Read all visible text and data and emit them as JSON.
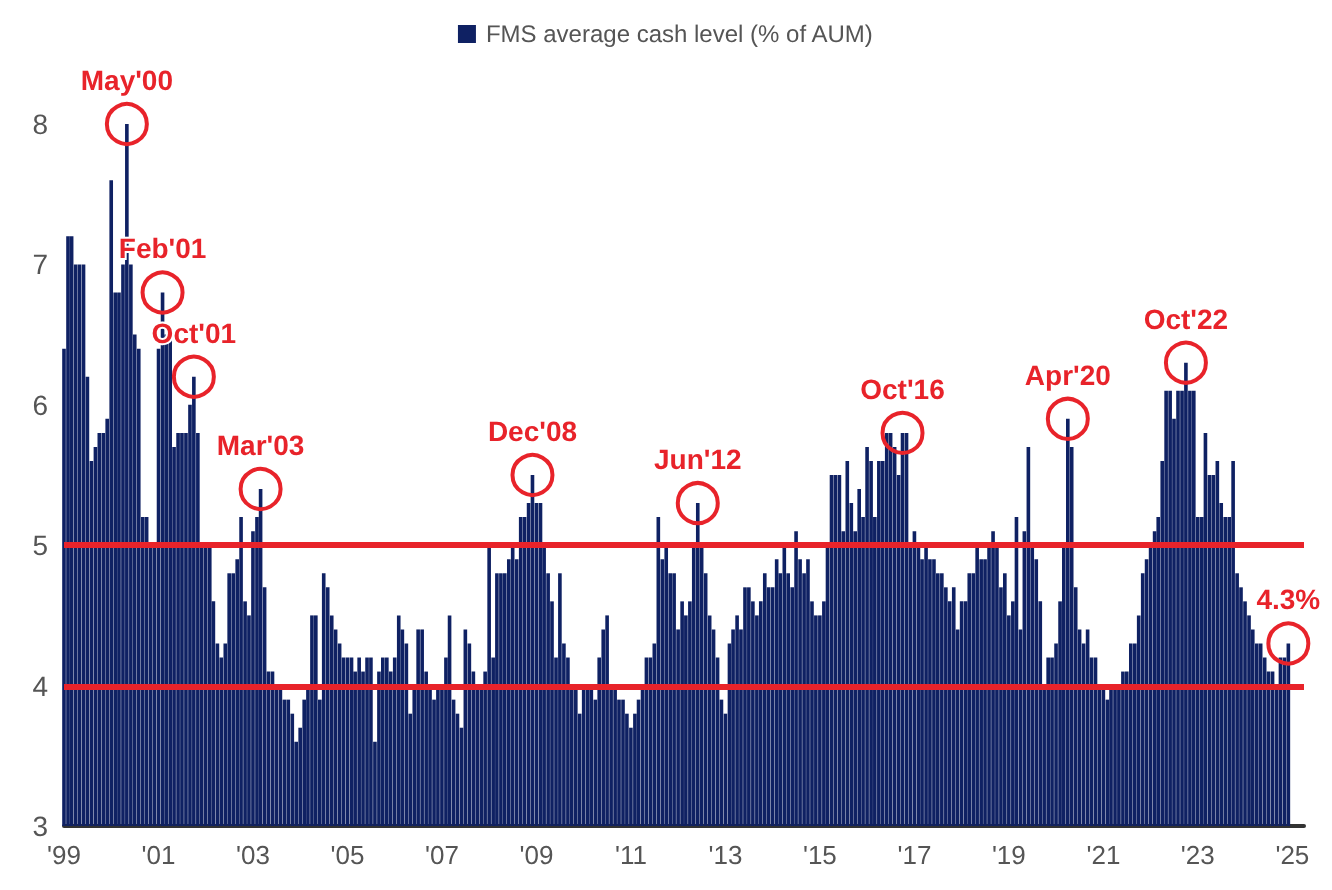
{
  "chart_data": {
    "type": "bar",
    "x": [
      "1999-01",
      "1999-02",
      "1999-03",
      "1999-04",
      "1999-05",
      "1999-06",
      "1999-07",
      "1999-08",
      "1999-09",
      "1999-10",
      "1999-11",
      "1999-12",
      "2000-01",
      "2000-02",
      "2000-03",
      "2000-04",
      "2000-05",
      "2000-06",
      "2000-07",
      "2000-08",
      "2000-09",
      "2000-10",
      "2000-11",
      "2000-12",
      "2001-01",
      "2001-02",
      "2001-03",
      "2001-04",
      "2001-05",
      "2001-06",
      "2001-07",
      "2001-08",
      "2001-09",
      "2001-10",
      "2001-11",
      "2001-12",
      "2002-01",
      "2002-02",
      "2002-03",
      "2002-04",
      "2002-05",
      "2002-06",
      "2002-07",
      "2002-08",
      "2002-09",
      "2002-10",
      "2002-11",
      "2002-12",
      "2003-01",
      "2003-02",
      "2003-03",
      "2003-04",
      "2003-05",
      "2003-06",
      "2003-07",
      "2003-08",
      "2003-09",
      "2003-10",
      "2003-11",
      "2003-12",
      "2004-01",
      "2004-02",
      "2004-03",
      "2004-04",
      "2004-05",
      "2004-06",
      "2004-07",
      "2004-08",
      "2004-09",
      "2004-10",
      "2004-11",
      "2004-12",
      "2005-01",
      "2005-02",
      "2005-03",
      "2005-04",
      "2005-05",
      "2005-06",
      "2005-07",
      "2005-08",
      "2005-09",
      "2005-10",
      "2005-11",
      "2005-12",
      "2006-01",
      "2006-02",
      "2006-03",
      "2006-04",
      "2006-05",
      "2006-06",
      "2006-07",
      "2006-08",
      "2006-09",
      "2006-10",
      "2006-11",
      "2006-12",
      "2007-01",
      "2007-02",
      "2007-03",
      "2007-04",
      "2007-05",
      "2007-06",
      "2007-07",
      "2007-08",
      "2007-09",
      "2007-10",
      "2007-11",
      "2007-12",
      "2008-01",
      "2008-02",
      "2008-03",
      "2008-04",
      "2008-05",
      "2008-06",
      "2008-07",
      "2008-08",
      "2008-09",
      "2008-10",
      "2008-11",
      "2008-12",
      "2009-01",
      "2009-02",
      "2009-03",
      "2009-04",
      "2009-05",
      "2009-06",
      "2009-07",
      "2009-08",
      "2009-09",
      "2009-10",
      "2009-11",
      "2009-12",
      "2010-01",
      "2010-02",
      "2010-03",
      "2010-04",
      "2010-05",
      "2010-06",
      "2010-07",
      "2010-08",
      "2010-09",
      "2010-10",
      "2010-11",
      "2010-12",
      "2011-01",
      "2011-02",
      "2011-03",
      "2011-04",
      "2011-05",
      "2011-06",
      "2011-07",
      "2011-08",
      "2011-09",
      "2011-10",
      "2011-11",
      "2011-12",
      "2012-01",
      "2012-02",
      "2012-03",
      "2012-04",
      "2012-05",
      "2012-06",
      "2012-07",
      "2012-08",
      "2012-09",
      "2012-10",
      "2012-11",
      "2012-12",
      "2013-01",
      "2013-02",
      "2013-03",
      "2013-04",
      "2013-05",
      "2013-06",
      "2013-07",
      "2013-08",
      "2013-09",
      "2013-10",
      "2013-11",
      "2013-12",
      "2014-01",
      "2014-02",
      "2014-03",
      "2014-04",
      "2014-05",
      "2014-06",
      "2014-07",
      "2014-08",
      "2014-09",
      "2014-10",
      "2014-11",
      "2014-12",
      "2015-01",
      "2015-02",
      "2015-03",
      "2015-04",
      "2015-05",
      "2015-06",
      "2015-07",
      "2015-08",
      "2015-09",
      "2015-10",
      "2015-11",
      "2015-12",
      "2016-01",
      "2016-02",
      "2016-03",
      "2016-04",
      "2016-05",
      "2016-06",
      "2016-07",
      "2016-08",
      "2016-09",
      "2016-10",
      "2016-11",
      "2016-12",
      "2017-01",
      "2017-02",
      "2017-03",
      "2017-04",
      "2017-05",
      "2017-06",
      "2017-07",
      "2017-08",
      "2017-09",
      "2017-10",
      "2017-11",
      "2017-12",
      "2018-01",
      "2018-02",
      "2018-03",
      "2018-04",
      "2018-05",
      "2018-06",
      "2018-07",
      "2018-08",
      "2018-09",
      "2018-10",
      "2018-11",
      "2018-12",
      "2019-01",
      "2019-02",
      "2019-03",
      "2019-04",
      "2019-05",
      "2019-06",
      "2019-07",
      "2019-08",
      "2019-09",
      "2019-10",
      "2019-11",
      "2019-12",
      "2020-01",
      "2020-02",
      "2020-03",
      "2020-04",
      "2020-05",
      "2020-06",
      "2020-07",
      "2020-08",
      "2020-09",
      "2020-10",
      "2020-11",
      "2020-12",
      "2021-01",
      "2021-02",
      "2021-03",
      "2021-04",
      "2021-05",
      "2021-06",
      "2021-07",
      "2021-08",
      "2021-09",
      "2021-10",
      "2021-11",
      "2021-12",
      "2022-01",
      "2022-02",
      "2022-03",
      "2022-04",
      "2022-05",
      "2022-06",
      "2022-07",
      "2022-08",
      "2022-09",
      "2022-10",
      "2022-11",
      "2022-12",
      "2023-01",
      "2023-02",
      "2023-03",
      "2023-04",
      "2023-05",
      "2023-06",
      "2023-07",
      "2023-08",
      "2023-09",
      "2023-10",
      "2023-11",
      "2023-12",
      "2024-01",
      "2024-02",
      "2024-03",
      "2024-04",
      "2024-05",
      "2024-06",
      "2024-07",
      "2024-08",
      "2024-09",
      "2024-10",
      "2024-11",
      "2024-12"
    ],
    "series": [
      {
        "name": "FMS average cash level (% of AUM)",
        "color": "#0f2163",
        "values": [
          6.4,
          7.2,
          7.2,
          7.0,
          7.0,
          7.0,
          6.2,
          5.6,
          5.7,
          5.8,
          5.8,
          5.9,
          7.6,
          6.8,
          6.8,
          7.0,
          8.0,
          7.0,
          6.5,
          6.4,
          5.2,
          5.2,
          5.0,
          5.0,
          6.4,
          6.8,
          6.5,
          6.5,
          5.7,
          5.8,
          5.8,
          5.8,
          6.0,
          6.2,
          5.8,
          5.0,
          5.0,
          5.0,
          4.6,
          4.3,
          4.2,
          4.3,
          4.8,
          4.8,
          4.9,
          5.2,
          4.6,
          4.5,
          5.1,
          5.2,
          5.4,
          4.7,
          4.1,
          4.1,
          4.0,
          4.0,
          3.9,
          3.9,
          3.8,
          3.6,
          3.7,
          3.9,
          4.0,
          4.5,
          4.5,
          3.9,
          4.8,
          4.7,
          4.5,
          4.4,
          4.3,
          4.2,
          4.2,
          4.2,
          4.1,
          4.2,
          4.1,
          4.2,
          4.2,
          3.6,
          4.1,
          4.2,
          4.2,
          4.1,
          4.2,
          4.5,
          4.4,
          4.3,
          3.8,
          4.0,
          4.4,
          4.4,
          4.1,
          4.0,
          3.9,
          4.0,
          4.0,
          4.2,
          4.5,
          3.9,
          3.8,
          3.7,
          4.4,
          4.3,
          4.1,
          4.0,
          4.0,
          4.1,
          5.0,
          4.2,
          4.8,
          4.8,
          4.8,
          4.9,
          5.0,
          4.9,
          5.2,
          5.2,
          5.3,
          5.5,
          5.3,
          5.3,
          5.0,
          4.8,
          4.6,
          4.2,
          4.8,
          4.3,
          4.2,
          4.0,
          4.0,
          3.8,
          4.0,
          4.0,
          4.0,
          3.9,
          4.2,
          4.4,
          4.5,
          4.0,
          4.0,
          3.9,
          3.9,
          3.8,
          3.7,
          3.8,
          3.9,
          4.0,
          4.2,
          4.2,
          4.3,
          5.2,
          4.9,
          5.0,
          4.8,
          4.8,
          4.4,
          4.6,
          4.5,
          4.6,
          5.0,
          5.3,
          5.0,
          4.8,
          4.5,
          4.4,
          4.2,
          3.9,
          3.8,
          4.3,
          4.4,
          4.5,
          4.4,
          4.7,
          4.7,
          4.6,
          4.5,
          4.6,
          4.8,
          4.7,
          4.7,
          4.9,
          4.8,
          5.0,
          4.8,
          4.7,
          5.1,
          4.9,
          4.8,
          4.9,
          4.6,
          4.5,
          4.5,
          4.6,
          5.0,
          5.5,
          5.5,
          5.5,
          5.1,
          5.6,
          5.3,
          5.1,
          5.4,
          5.2,
          5.7,
          5.6,
          5.2,
          5.6,
          5.6,
          5.8,
          5.8,
          5.7,
          5.5,
          5.8,
          5.8,
          5.0,
          5.1,
          5.0,
          4.9,
          5.0,
          4.9,
          4.9,
          4.8,
          4.8,
          4.7,
          4.6,
          4.7,
          4.4,
          4.6,
          4.6,
          4.8,
          4.8,
          5.0,
          4.9,
          4.9,
          5.0,
          5.1,
          5.0,
          4.7,
          4.8,
          4.5,
          4.6,
          5.2,
          4.4,
          5.1,
          5.7,
          5.0,
          4.9,
          4.6,
          4.0,
          4.2,
          4.2,
          4.3,
          4.6,
          5.0,
          5.9,
          5.7,
          4.7,
          4.4,
          4.3,
          4.4,
          4.2,
          4.2,
          4.0,
          4.0,
          3.9,
          4.0,
          4.0,
          4.0,
          4.1,
          4.1,
          4.3,
          4.3,
          4.5,
          4.8,
          4.9,
          5.0,
          5.1,
          5.2,
          5.6,
          6.1,
          6.1,
          5.9,
          6.1,
          6.1,
          6.3,
          6.1,
          6.1,
          5.2,
          5.2,
          5.8,
          5.5,
          5.5,
          5.6,
          5.3,
          5.2,
          5.2,
          5.6,
          4.8,
          4.7,
          4.6,
          4.5,
          4.4,
          4.3,
          4.3,
          4.2,
          4.1,
          4.1,
          4.0,
          4.2,
          4.2,
          4.3
        ]
      }
    ],
    "xlim": [
      "1999-01",
      "2025-04"
    ],
    "xticks": [
      {
        "value": "1999-01",
        "label": "'99"
      },
      {
        "value": "2001-01",
        "label": "'01"
      },
      {
        "value": "2003-01",
        "label": "'03"
      },
      {
        "value": "2005-01",
        "label": "'05"
      },
      {
        "value": "2007-01",
        "label": "'07"
      },
      {
        "value": "2009-01",
        "label": "'09"
      },
      {
        "value": "2011-01",
        "label": "'11"
      },
      {
        "value": "2013-01",
        "label": "'13"
      },
      {
        "value": "2015-01",
        "label": "'15"
      },
      {
        "value": "2017-01",
        "label": "'17"
      },
      {
        "value": "2019-01",
        "label": "'19"
      },
      {
        "value": "2021-01",
        "label": "'21"
      },
      {
        "value": "2023-01",
        "label": "'23"
      },
      {
        "value": "2025-01",
        "label": "'25"
      }
    ],
    "ylim": [
      3,
      8
    ],
    "yticks": [
      3,
      4,
      5,
      6,
      7,
      8
    ],
    "ref_lines": [
      {
        "axis": "y",
        "value": 5,
        "color": "#e8232a"
      },
      {
        "axis": "y",
        "value": 4,
        "color": "#e8232a"
      }
    ],
    "annotations": [
      {
        "text": "May'00",
        "x": "2000-05",
        "y": 8.0
      },
      {
        "text": "Feb'01",
        "x": "2001-02",
        "y": 6.8
      },
      {
        "text": "Oct'01",
        "x": "2001-10",
        "y": 6.2
      },
      {
        "text": "Mar'03",
        "x": "2003-03",
        "y": 5.4
      },
      {
        "text": "Dec'08",
        "x": "2008-12",
        "y": 5.5
      },
      {
        "text": "Jun'12",
        "x": "2012-06",
        "y": 5.3
      },
      {
        "text": "Oct'16",
        "x": "2016-10",
        "y": 5.8
      },
      {
        "text": "Apr'20",
        "x": "2020-04",
        "y": 5.9
      },
      {
        "text": "Oct'22",
        "x": "2022-10",
        "y": 6.3
      },
      {
        "text": "4.3%",
        "x": "2024-12",
        "y": 4.3
      }
    ],
    "grid": false,
    "legend": "top"
  }
}
